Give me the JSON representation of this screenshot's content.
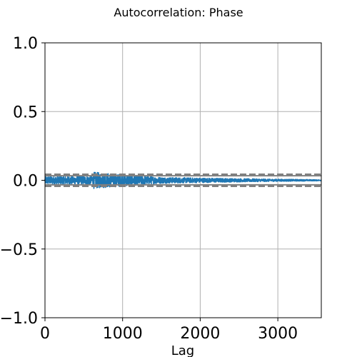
{
  "chart_data": {
    "type": "line",
    "title": "Autocorrelation: Phase",
    "xlabel": "Lag",
    "ylabel": "",
    "xlim": [
      0,
      3560
    ],
    "ylim": [
      -1.0,
      1.0
    ],
    "grid": true,
    "legend": "none",
    "x_ticks": [
      {
        "value": 0,
        "label": "0"
      },
      {
        "value": 1000,
        "label": "1000"
      },
      {
        "value": 2000,
        "label": "2000"
      },
      {
        "value": 3000,
        "label": "3000"
      }
    ],
    "y_ticks": [
      {
        "value": 1.0,
        "label": "1.0"
      },
      {
        "value": 0.5,
        "label": "0.5"
      },
      {
        "value": 0.0,
        "label": "0.0"
      },
      {
        "value": -0.5,
        "label": "−0.5"
      },
      {
        "value": -1.0,
        "label": "−1.0"
      }
    ],
    "confidence_bands": [
      {
        "value": 0.043,
        "style": "dashed"
      },
      {
        "value": 0.033,
        "style": "solid"
      },
      {
        "value": -0.033,
        "style": "solid"
      },
      {
        "value": -0.043,
        "style": "dashed"
      }
    ],
    "band_color": "#808080",
    "series": [
      {
        "color": "#1f77b4",
        "n_lags": 3560,
        "envelope": [
          {
            "lag": 0,
            "amplitude": 0.03
          },
          {
            "lag": 600,
            "amplitude": 0.032
          },
          {
            "lag": 630,
            "amplitude": 0.06
          },
          {
            "lag": 1500,
            "amplitude": 0.022
          },
          {
            "lag": 2500,
            "amplitude": 0.012
          },
          {
            "lag": 3560,
            "amplitude": 0.004
          }
        ]
      }
    ]
  }
}
